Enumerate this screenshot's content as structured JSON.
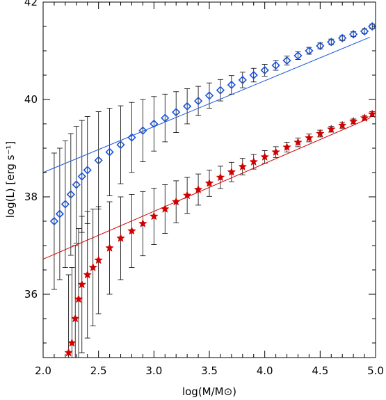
{
  "chart_data": {
    "type": "scatter",
    "title": "",
    "xlabel": "log(M/M⊙)",
    "ylabel": "log(L) [erg s⁻¹]",
    "xlim": [
      2.0,
      5.0
    ],
    "ylim": [
      34.7,
      42.0
    ],
    "xticks": [
      "2.0",
      "2.5",
      "3.0",
      "3.5",
      "4.0",
      "4.5",
      "5.0"
    ],
    "yticks": [
      "36",
      "38",
      "40",
      "42"
    ],
    "grid": false,
    "colors": {
      "upper": "#1a55e0",
      "lower": "#d10000",
      "errorbar": "#000000"
    },
    "series": [
      {
        "marker": "diamond",
        "color": "#1a55e0",
        "x": [
          2.1,
          2.15,
          2.2,
          2.25,
          2.3,
          2.35,
          2.4,
          2.5,
          2.6,
          2.7,
          2.8,
          2.9,
          3.0,
          3.1,
          3.2,
          3.3,
          3.4,
          3.5,
          3.6,
          3.7,
          3.8,
          3.9,
          4.0,
          4.1,
          4.2,
          4.3,
          4.4,
          4.5,
          4.6,
          4.7,
          4.8,
          4.9,
          4.97
        ],
        "y": [
          37.5,
          37.65,
          37.85,
          38.05,
          38.25,
          38.42,
          38.55,
          38.75,
          38.92,
          39.07,
          39.22,
          39.36,
          39.5,
          39.62,
          39.74,
          39.86,
          39.97,
          40.08,
          40.19,
          40.3,
          40.4,
          40.5,
          40.6,
          40.7,
          40.8,
          40.9,
          41.0,
          41.1,
          41.18,
          41.26,
          41.34,
          41.4,
          41.5
        ],
        "err": [
          1.4,
          1.35,
          1.3,
          1.25,
          1.2,
          1.15,
          1.1,
          1.0,
          0.9,
          0.8,
          0.72,
          0.64,
          0.56,
          0.49,
          0.42,
          0.36,
          0.3,
          0.26,
          0.22,
          0.19,
          0.16,
          0.14,
          0.12,
          0.1,
          0.09,
          0.08,
          0.07,
          0.06,
          0.06,
          0.05,
          0.05,
          0.05,
          0.05
        ]
      },
      {
        "marker": "star",
        "color": "#d10000",
        "x": [
          2.23,
          2.26,
          2.29,
          2.32,
          2.35,
          2.4,
          2.45,
          2.5,
          2.6,
          2.7,
          2.8,
          2.9,
          3.0,
          3.1,
          3.2,
          3.3,
          3.4,
          3.5,
          3.6,
          3.7,
          3.8,
          3.9,
          4.0,
          4.1,
          4.2,
          4.3,
          4.4,
          4.5,
          4.6,
          4.7,
          4.8,
          4.9,
          4.97
        ],
        "y": [
          34.8,
          35.0,
          35.5,
          35.9,
          36.2,
          36.4,
          36.55,
          36.7,
          36.95,
          37.15,
          37.3,
          37.45,
          37.6,
          37.75,
          37.9,
          38.03,
          38.15,
          38.28,
          38.4,
          38.51,
          38.62,
          38.72,
          38.82,
          38.92,
          39.02,
          39.12,
          39.21,
          39.3,
          39.39,
          39.47,
          39.55,
          39.62,
          39.7
        ],
        "err": [
          1.6,
          1.55,
          1.5,
          1.45,
          1.4,
          1.3,
          1.2,
          1.1,
          0.95,
          0.85,
          0.75,
          0.66,
          0.58,
          0.5,
          0.43,
          0.37,
          0.32,
          0.27,
          0.23,
          0.2,
          0.17,
          0.15,
          0.13,
          0.11,
          0.1,
          0.09,
          0.08,
          0.07,
          0.06,
          0.06,
          0.05,
          0.05,
          0.05
        ]
      }
    ],
    "fit_lines": [
      {
        "color": "#1a55e0",
        "x": [
          2.0,
          4.95
        ],
        "y": [
          38.5,
          41.28
        ]
      },
      {
        "color": "#d10000",
        "x": [
          2.0,
          4.95
        ],
        "y": [
          36.72,
          39.62
        ]
      }
    ]
  }
}
